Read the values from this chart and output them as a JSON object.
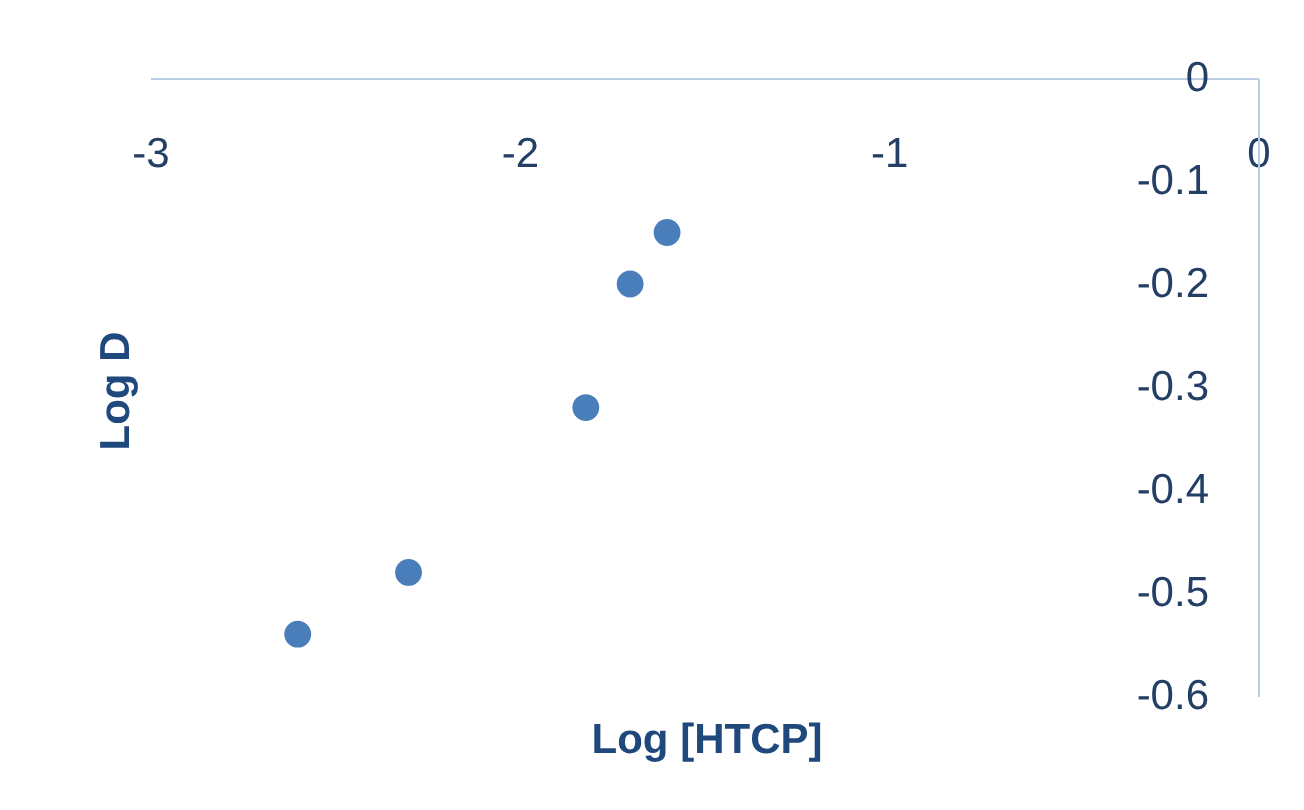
{
  "chart_data": {
    "type": "scatter",
    "xlabel": "Log [HTCP]",
    "ylabel": "Log D",
    "x": [
      -2.6,
      -2.3,
      -1.82,
      -1.7,
      -1.6
    ],
    "series": [
      {
        "color": "#4a7ebb",
        "values": [
          -0.54,
          -0.48,
          -0.32,
          -0.2,
          -0.15
        ]
      }
    ],
    "xlim": [
      -3,
      0
    ],
    "xticks": [
      -3,
      -2,
      -1,
      0
    ],
    "ylim": [
      -0.6,
      0
    ],
    "yticks": [
      0,
      -0.1,
      -0.2,
      -0.3,
      -0.4,
      -0.5,
      -0.6
    ],
    "marker": "circle"
  }
}
